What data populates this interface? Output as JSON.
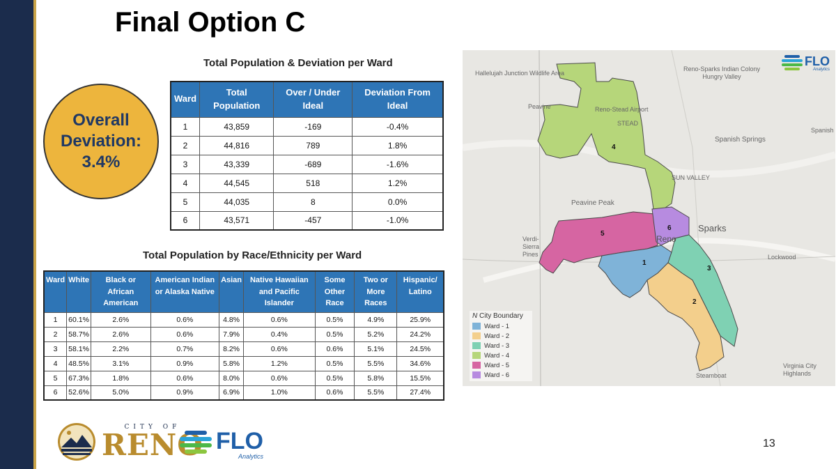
{
  "title": "Final Option C",
  "deviation": {
    "text": "Overall\nDeviation:\n3.4%"
  },
  "table1": {
    "caption": "Total Population & Deviation per Ward",
    "headers": [
      "Ward",
      "Total Population",
      "Over / Under Ideal",
      "Deviation From Ideal"
    ],
    "rows": [
      [
        "1",
        "43,859",
        "-169",
        "-0.4%"
      ],
      [
        "2",
        "44,816",
        "789",
        "1.8%"
      ],
      [
        "3",
        "43,339",
        "-689",
        "-1.6%"
      ],
      [
        "4",
        "44,545",
        "518",
        "1.2%"
      ],
      [
        "5",
        "44,035",
        "8",
        "0.0%"
      ],
      [
        "6",
        "43,571",
        "-457",
        "-1.0%"
      ]
    ]
  },
  "table2": {
    "caption": "Total Population by Race/Ethnicity per Ward",
    "headers": [
      "Ward",
      "White",
      "Black or African American",
      "American Indian or Alaska Native",
      "Asian",
      "Native Hawaiian and Pacific Islander",
      "Some Other Race",
      "Two or More Races",
      "Hispanic/ Latino"
    ],
    "rows": [
      [
        "1",
        "60.1%",
        "2.6%",
        "0.6%",
        "4.8%",
        "0.6%",
        "0.5%",
        "4.9%",
        "25.9%"
      ],
      [
        "2",
        "58.7%",
        "2.6%",
        "0.6%",
        "7.9%",
        "0.4%",
        "0.5%",
        "5.2%",
        "24.2%"
      ],
      [
        "3",
        "58.1%",
        "2.2%",
        "0.7%",
        "8.2%",
        "0.6%",
        "0.6%",
        "5.1%",
        "24.5%"
      ],
      [
        "4",
        "48.5%",
        "3.1%",
        "0.9%",
        "5.8%",
        "1.2%",
        "0.5%",
        "5.5%",
        "34.6%"
      ],
      [
        "5",
        "67.3%",
        "1.8%",
        "0.6%",
        "8.0%",
        "0.6%",
        "0.5%",
        "5.8%",
        "15.5%"
      ],
      [
        "6",
        "52.6%",
        "5.0%",
        "0.9%",
        "6.9%",
        "1.0%",
        "0.6%",
        "5.5%",
        "27.4%"
      ]
    ]
  },
  "map": {
    "place_labels": [
      "Hallelujah Junction Wildlife Area",
      "Peavine",
      "Reno-Stead Airport",
      "Reno-Sparks Indian Colony Hungry Valley",
      "Spanish Springs",
      "Spanish",
      "SUN VALLEY",
      "Peavine Peak",
      "Sparks",
      "Verdi-Sierra Pines",
      "Reno",
      "Lockwood",
      "Virginia City Highlands",
      "Steamboat",
      "STEAD"
    ],
    "ward_numbers": [
      "1",
      "2",
      "3",
      "4",
      "5",
      "6"
    ],
    "legend_title": "City Boundary",
    "legend": [
      {
        "label": "Ward - 1",
        "color": "#7fb3d8"
      },
      {
        "label": "Ward - 2",
        "color": "#f3cf8c"
      },
      {
        "label": "Ward - 3",
        "color": "#7fd1b3"
      },
      {
        "label": "Ward - 4",
        "color": "#b6d67a"
      },
      {
        "label": "Ward - 5",
        "color": "#d665a2"
      },
      {
        "label": "Ward - 6",
        "color": "#b78be0"
      }
    ]
  },
  "branding": {
    "flo": "FLO",
    "flo_sub": "Analytics",
    "city_of": "CITY OF",
    "reno": "RENO"
  },
  "page_number": "13"
}
